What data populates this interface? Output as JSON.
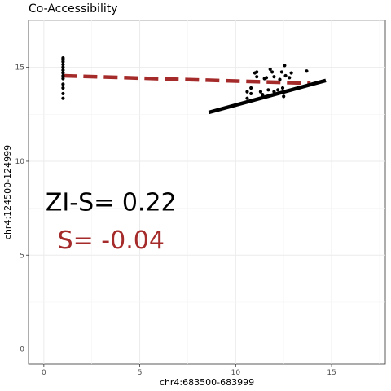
{
  "chart_data": {
    "type": "scatter",
    "title": "Co-Accessibility",
    "xlabel": "chr4:683500-683999",
    "ylabel": "chr4:124500-124999",
    "xlim": [
      -0.8,
      17.8
    ],
    "ylim": [
      -0.8,
      17.5
    ],
    "x_ticks": [
      0,
      5,
      10,
      15
    ],
    "y_ticks": [
      0,
      5,
      10,
      15
    ],
    "grid": true,
    "points": [
      [
        1.0,
        15.5
      ],
      [
        1.0,
        15.4
      ],
      [
        1.0,
        15.3
      ],
      [
        1.0,
        15.15
      ],
      [
        1.0,
        15.0
      ],
      [
        1.0,
        14.85
      ],
      [
        1.0,
        14.7
      ],
      [
        1.0,
        14.55
      ],
      [
        1.0,
        14.4
      ],
      [
        1.0,
        14.1
      ],
      [
        1.0,
        13.9
      ],
      [
        1.0,
        13.6
      ],
      [
        1.0,
        13.35
      ],
      [
        10.6,
        13.7
      ],
      [
        10.6,
        13.35
      ],
      [
        10.8,
        13.9
      ],
      [
        10.8,
        13.6
      ],
      [
        11.0,
        14.7
      ],
      [
        11.1,
        14.75
      ],
      [
        11.1,
        14.5
      ],
      [
        11.3,
        13.7
      ],
      [
        11.4,
        13.55
      ],
      [
        11.5,
        14.4
      ],
      [
        11.6,
        14.45
      ],
      [
        11.7,
        13.8
      ],
      [
        11.8,
        14.9
      ],
      [
        11.9,
        14.75
      ],
      [
        12.0,
        14.5
      ],
      [
        12.0,
        13.7
      ],
      [
        12.2,
        13.8
      ],
      [
        12.3,
        14.35
      ],
      [
        12.4,
        14.75
      ],
      [
        12.45,
        13.9
      ],
      [
        12.5,
        13.45
      ],
      [
        12.55,
        15.1
      ],
      [
        12.6,
        14.55
      ],
      [
        12.7,
        13.75
      ],
      [
        12.8,
        14.45
      ],
      [
        12.9,
        14.7
      ],
      [
        13.7,
        14.8
      ]
    ],
    "fit_lines": [
      {
        "label": "S",
        "x": [
          1.0,
          13.9
        ],
        "y": [
          14.55,
          14.15
        ],
        "color": "#a52a2a",
        "dash": true
      },
      {
        "label": "ZI-S",
        "x": [
          8.6,
          14.7
        ],
        "y": [
          12.6,
          14.3
        ],
        "color": "#000000",
        "dash": false
      }
    ],
    "annotations": [
      {
        "text": "ZI-S= 0.22",
        "x": 3.5,
        "y": 7.8,
        "color": "#000000"
      },
      {
        "text": "S= -0.04",
        "x": 3.5,
        "y": 5.8,
        "color": "#a52a2a"
      }
    ]
  }
}
